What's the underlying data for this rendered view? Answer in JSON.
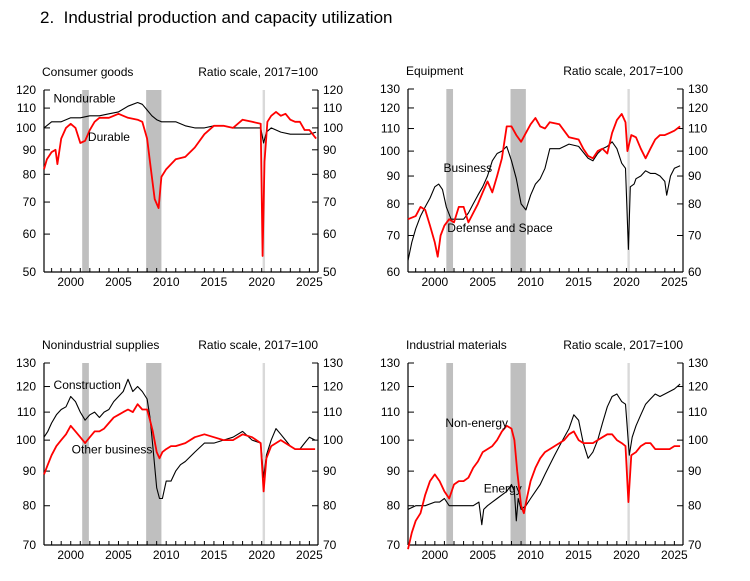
{
  "figure_title": "2.  Industrial production and capacity utilization",
  "colors": {
    "red": "#ff0000",
    "black": "#000000",
    "recession": "#bfbfbf",
    "covid": "#d9d9d9"
  },
  "chart_data": [
    {
      "type": "line",
      "title": "Consumer goods",
      "subtitle": "Ratio scale, 2017=100",
      "yscale": "log",
      "ylim": [
        50,
        120
      ],
      "yticks": [
        50,
        60,
        70,
        80,
        90,
        100,
        110,
        120
      ],
      "xlim": [
        1997.2,
        2025.9
      ],
      "xticks": [
        2000,
        2005,
        2010,
        2015,
        2020,
        2025
      ],
      "recessions": [
        [
          2001.2,
          2001.9
        ],
        [
          2007.9,
          2009.5
        ],
        [
          2020.1,
          2020.35
        ]
      ],
      "series": [
        {
          "name": "Nondurable",
          "color": "black",
          "label_at": [
            1998.2,
            113
          ],
          "x": [
            1997.2,
            1998,
            1999,
            2000,
            2001,
            2002,
            2003,
            2004,
            2005,
            2006,
            2007,
            2007.5,
            2008,
            2008.5,
            2009,
            2009.5,
            2010,
            2011,
            2012,
            2013,
            2014,
            2015,
            2016,
            2017,
            2018,
            2019,
            2019.9,
            2020.2,
            2020.5,
            2021,
            2022,
            2023,
            2024,
            2025,
            2025.7
          ],
          "y": [
            100,
            103,
            103,
            105,
            105,
            106,
            106,
            107,
            108,
            111,
            113,
            112,
            109,
            106,
            104,
            103,
            103,
            103,
            101,
            100,
            100,
            101,
            101,
            100,
            100,
            100,
            100,
            93,
            98,
            100,
            98,
            97,
            97,
            97,
            98
          ]
        },
        {
          "name": "Durable",
          "color": "red",
          "label_at": [
            2001.8,
            94
          ],
          "x": [
            1997.2,
            1997.5,
            1998,
            1998.4,
            1998.6,
            1999,
            1999.5,
            2000,
            2000.5,
            2001,
            2001.5,
            2002,
            2002.5,
            2003,
            2004,
            2005,
            2006,
            2007,
            2007.5,
            2008,
            2008.4,
            2008.8,
            2009.2,
            2009.5,
            2010,
            2011,
            2012,
            2013,
            2014,
            2015,
            2016,
            2017,
            2018,
            2019,
            2019.9,
            2020.1,
            2020.3,
            2020.6,
            2021,
            2021.5,
            2022,
            2022.5,
            2023,
            2023.5,
            2024,
            2024.5,
            2025,
            2025.7
          ],
          "y": [
            82,
            86,
            89,
            90,
            84,
            95,
            100,
            102,
            100,
            93,
            94,
            99,
            103,
            105,
            105,
            107,
            105,
            104,
            103,
            95,
            82,
            71,
            68,
            79,
            82,
            86,
            87,
            91,
            97,
            101,
            101,
            100,
            104,
            103,
            102,
            54,
            85,
            103,
            106,
            108,
            106,
            107,
            104,
            103,
            103,
            99,
            99,
            95
          ]
        }
      ]
    },
    {
      "type": "line",
      "title": "Equipment",
      "subtitle": "Ratio scale, 2017=100",
      "yscale": "log",
      "ylim": [
        60,
        130
      ],
      "yticks": [
        60,
        70,
        80,
        90,
        100,
        110,
        120,
        130
      ],
      "xlim": [
        1997.2,
        2025.9
      ],
      "xticks": [
        2000,
        2005,
        2010,
        2015,
        2020,
        2025
      ],
      "recessions": [
        [
          2001.2,
          2001.9
        ],
        [
          2007.9,
          2009.5
        ],
        [
          2020.1,
          2020.35
        ]
      ],
      "series": [
        {
          "name": "Business",
          "color": "black",
          "label_at": [
            2000.9,
            91.5
          ],
          "x": [
            1997.2,
            1997.6,
            1998,
            1998.5,
            1999,
            1999.5,
            2000,
            2000.4,
            2000.8,
            2001.2,
            2001.7,
            2002,
            2002.5,
            2003,
            2003.5,
            2004,
            2004.5,
            2005,
            2005.5,
            2006,
            2006.5,
            2007,
            2007.5,
            2008,
            2008.5,
            2009,
            2009.5,
            2010,
            2010.5,
            2011,
            2011.5,
            2012,
            2013,
            2014,
            2015,
            2016,
            2016.5,
            2017,
            2017.5,
            2018,
            2018.5,
            2019,
            2019.5,
            2019.9,
            2020.2,
            2020.4,
            2020.8,
            2021,
            2021.5,
            2022,
            2022.5,
            2023,
            2023.5,
            2024,
            2024.2,
            2024.6,
            2025,
            2025.6
          ],
          "y": [
            63,
            68,
            72,
            76,
            79,
            82,
            86,
            87,
            85,
            79,
            75,
            75,
            75,
            75,
            77,
            80,
            83,
            86,
            90,
            96,
            99,
            100,
            102,
            96,
            89,
            80,
            78,
            83,
            87,
            89,
            93,
            101,
            101,
            103,
            102,
            97,
            96,
            99,
            101,
            102,
            104,
            101,
            95,
            93,
            66,
            86,
            87,
            89,
            90,
            92,
            91,
            91,
            90,
            88,
            83,
            90,
            93,
            94
          ]
        },
        {
          "name": "Defense and Space",
          "color": "red",
          "label_at": [
            2001.3,
            71
          ],
          "x": [
            1997.2,
            1998,
            1998.5,
            1999,
            1999.5,
            2000,
            2000.3,
            2000.6,
            2001,
            2001.5,
            2002,
            2002.5,
            2003,
            2003.5,
            2004,
            2004.5,
            2005,
            2005.5,
            2006,
            2006.5,
            2007,
            2007.5,
            2008,
            2008.5,
            2009,
            2009.5,
            2010,
            2010.5,
            2011,
            2011.5,
            2012,
            2013,
            2014,
            2015,
            2015.5,
            2016,
            2016.5,
            2017,
            2017.5,
            2018,
            2018.5,
            2019,
            2019.5,
            2019.9,
            2020.1,
            2020.5,
            2021,
            2021.5,
            2022,
            2022.5,
            2023,
            2023.5,
            2024,
            2024.5,
            2025,
            2025.6
          ],
          "y": [
            75,
            76,
            79,
            78,
            73,
            68,
            64,
            70,
            73,
            75,
            74,
            79,
            79,
            74,
            77,
            80,
            84,
            88,
            84,
            90,
            97,
            111,
            111,
            107,
            104,
            108,
            112,
            115,
            111,
            110,
            113,
            112,
            106,
            105,
            101,
            98,
            97,
            100,
            101,
            99,
            108,
            114,
            117,
            113,
            100,
            107,
            106,
            101,
            97,
            101,
            105,
            107,
            107,
            108,
            109,
            111
          ]
        }
      ]
    },
    {
      "type": "line",
      "title": "Nonindustrial supplies",
      "subtitle": "Ratio scale, 2017=100",
      "yscale": "log",
      "ylim": [
        70,
        130
      ],
      "yticks": [
        70,
        80,
        90,
        100,
        110,
        120,
        130
      ],
      "xlim": [
        1997.2,
        2025.9
      ],
      "xticks": [
        2000,
        2005,
        2010,
        2015,
        2020,
        2025
      ],
      "recessions": [
        [
          2001.2,
          2001.9
        ],
        [
          2007.9,
          2009.5
        ],
        [
          2020.1,
          2020.35
        ]
      ],
      "series": [
        {
          "name": "Construction",
          "color": "black",
          "label_at": [
            1998.2,
            119
          ],
          "x": [
            1997.2,
            1997.6,
            1998,
            1998.5,
            1999,
            1999.5,
            2000,
            2000.5,
            2001,
            2001.5,
            2002,
            2002.5,
            2003,
            2003.5,
            2004,
            2004.5,
            2005,
            2005.5,
            2006,
            2006.5,
            2007,
            2007.5,
            2008,
            2008.3,
            2008.6,
            2009,
            2009.3,
            2009.6,
            2010,
            2010.5,
            2011,
            2011.5,
            2012,
            2013,
            2014,
            2015,
            2016,
            2017,
            2018,
            2019,
            2019.9,
            2020.2,
            2020.5,
            2021,
            2021.5,
            2022,
            2022.5,
            2023,
            2023.5,
            2024,
            2024.5,
            2025,
            2025.6
          ],
          "y": [
            101,
            103,
            106,
            109,
            111,
            112,
            116,
            114,
            110,
            107,
            109,
            110,
            108,
            110,
            111,
            114,
            116,
            118,
            123,
            118,
            120,
            118,
            115,
            108,
            98,
            85,
            82,
            82,
            87,
            87,
            90,
            92,
            93,
            96,
            99,
            99,
            100,
            101,
            103,
            100,
            99,
            88,
            95,
            100,
            104,
            102,
            100,
            98,
            97,
            97,
            99,
            101,
            100
          ]
        },
        {
          "name": "Other business",
          "color": "red",
          "label_at": [
            2000.1,
            95.5
          ],
          "x": [
            1997.2,
            1997.6,
            1998,
            1998.5,
            1999,
            1999.5,
            2000,
            2000.5,
            2001,
            2001.5,
            2002,
            2002.5,
            2003,
            2003.5,
            2004,
            2004.5,
            2005,
            2005.5,
            2006,
            2006.5,
            2007,
            2007.5,
            2008,
            2008.3,
            2008.6,
            2009,
            2009.3,
            2009.6,
            2010,
            2010.5,
            2011,
            2012,
            2013,
            2014,
            2015,
            2016,
            2017,
            2018,
            2019,
            2019.9,
            2020.2,
            2020.5,
            2021,
            2021.5,
            2022,
            2022.5,
            2023,
            2023.5,
            2024,
            2024.5,
            2025,
            2025.6
          ],
          "y": [
            89,
            92,
            95,
            98,
            100,
            102,
            105,
            103,
            101,
            99,
            101,
            103,
            103,
            104,
            106,
            108,
            109,
            110,
            111,
            110,
            113,
            111,
            111,
            107,
            103,
            96,
            94,
            96,
            97,
            98,
            98,
            99,
            101,
            102,
            101,
            100,
            100,
            102,
            101,
            99,
            84,
            94,
            98,
            99,
            100,
            99,
            98,
            97,
            97,
            97,
            97,
            97
          ]
        }
      ]
    },
    {
      "type": "line",
      "title": "Industrial materials",
      "subtitle": "Ratio scale, 2017=100",
      "yscale": "log",
      "ylim": [
        70,
        130
      ],
      "yticks": [
        70,
        80,
        90,
        100,
        110,
        120,
        130
      ],
      "xlim": [
        1997.2,
        2025.9
      ],
      "xticks": [
        2000,
        2005,
        2010,
        2015,
        2020,
        2025
      ],
      "recessions": [
        [
          2001.2,
          2001.9
        ],
        [
          2007.9,
          2009.5
        ],
        [
          2020.1,
          2020.35
        ]
      ],
      "series": [
        {
          "name": "Energy",
          "color": "black",
          "label_at": [
            2005.1,
            83.7
          ],
          "x": [
            1997.2,
            1998,
            1999,
            2000,
            2000.5,
            2001,
            2001.5,
            2002,
            2003,
            2004,
            2004.6,
            2004.9,
            2005.1,
            2005.5,
            2006,
            2006.5,
            2007,
            2007.5,
            2008,
            2008.3,
            2008.5,
            2008.7,
            2009,
            2009.5,
            2010,
            2010.5,
            2011,
            2011.5,
            2012,
            2012.5,
            2013,
            2013.5,
            2014,
            2014.5,
            2015,
            2015.5,
            2016,
            2016.5,
            2017,
            2017.5,
            2018,
            2018.5,
            2019,
            2019.5,
            2019.9,
            2020.3,
            2020.6,
            2021,
            2021.5,
            2022,
            2022.5,
            2023,
            2023.5,
            2024,
            2024.5,
            2025,
            2025.6
          ],
          "y": [
            79,
            80,
            80,
            81,
            81,
            82,
            80,
            80,
            80,
            80,
            81,
            75,
            79,
            80,
            81,
            82,
            83,
            84,
            86,
            84,
            76,
            82,
            79,
            80,
            82,
            84,
            86,
            89,
            92,
            95,
            98,
            101,
            104,
            109,
            107,
            99,
            94,
            96,
            100,
            106,
            112,
            116,
            117,
            114,
            113,
            95,
            101,
            105,
            109,
            113,
            115,
            117,
            116,
            117,
            118,
            119,
            121
          ]
        },
        {
          "name": "Non-energy",
          "color": "red",
          "label_at": [
            2001.1,
            104.5
          ],
          "x": [
            1997.2,
            1997.6,
            1998,
            1998.5,
            1999,
            1999.5,
            2000,
            2000.5,
            2001,
            2001.5,
            2002,
            2002.5,
            2003,
            2003.5,
            2004,
            2004.5,
            2005,
            2005.5,
            2006,
            2006.5,
            2007,
            2007.5,
            2008,
            2008.3,
            2008.6,
            2009,
            2009.3,
            2009.6,
            2010,
            2010.5,
            2011,
            2011.5,
            2012,
            2012.5,
            2013,
            2013.5,
            2014,
            2014.5,
            2015,
            2015.5,
            2016,
            2016.5,
            2017,
            2017.5,
            2018,
            2018.5,
            2019,
            2019.5,
            2019.9,
            2020.2,
            2020.5,
            2021,
            2021.5,
            2022,
            2022.5,
            2023,
            2023.5,
            2024,
            2024.5,
            2025,
            2025.6
          ],
          "y": [
            69,
            73,
            76,
            78,
            83,
            87,
            89,
            87,
            84,
            82,
            86,
            87,
            87,
            88,
            91,
            93,
            96,
            97,
            98,
            100,
            103,
            105,
            104,
            100,
            90,
            80,
            78,
            82,
            87,
            91,
            94,
            96,
            97,
            98,
            99,
            100,
            102,
            103,
            100,
            99,
            99,
            99,
            100,
            101,
            102,
            102,
            100,
            99,
            98,
            81,
            95,
            96,
            98,
            99,
            99,
            97,
            97,
            97,
            97,
            98,
            98
          ]
        }
      ]
    }
  ]
}
